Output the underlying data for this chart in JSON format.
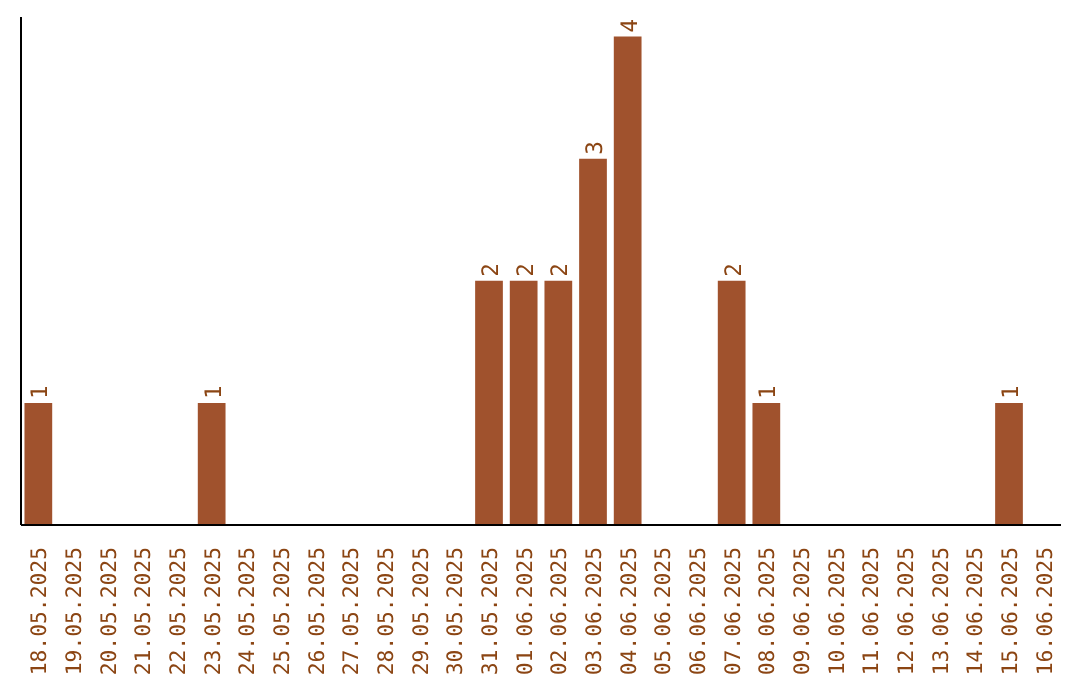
{
  "chart_data": {
    "type": "bar",
    "categories": [
      "18.05.2025",
      "19.05.2025",
      "20.05.2025",
      "21.05.2025",
      "22.05.2025",
      "23.05.2025",
      "24.05.2025",
      "25.05.2025",
      "26.05.2025",
      "27.05.2025",
      "28.05.2025",
      "29.05.2025",
      "30.05.2025",
      "31.05.2025",
      "01.06.2025",
      "02.06.2025",
      "03.06.2025",
      "04.06.2025",
      "05.06.2025",
      "06.06.2025",
      "07.06.2025",
      "08.06.2025",
      "09.06.2025",
      "10.06.2025",
      "11.06.2025",
      "12.06.2025",
      "13.06.2025",
      "14.06.2025",
      "15.06.2025",
      "16.06.2025"
    ],
    "values": [
      1,
      0,
      0,
      0,
      0,
      1,
      0,
      0,
      0,
      0,
      0,
      0,
      0,
      2,
      2,
      2,
      3,
      4,
      0,
      0,
      2,
      1,
      0,
      0,
      0,
      0,
      0,
      0,
      1,
      0
    ],
    "value_labels": [
      "1",
      null,
      null,
      null,
      null,
      "1",
      null,
      null,
      null,
      null,
      null,
      null,
      null,
      "2",
      "2",
      "2",
      "3",
      "4",
      null,
      null,
      "2",
      "1",
      null,
      null,
      null,
      null,
      null,
      null,
      "1",
      null
    ],
    "color": "#a0522d"
  }
}
